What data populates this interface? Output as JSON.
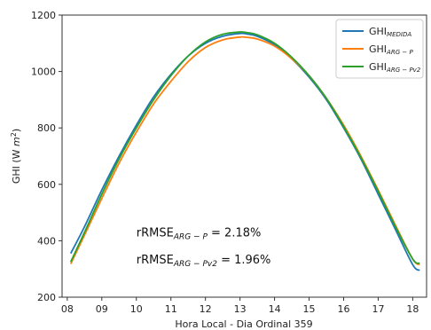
{
  "chart_data": {
    "type": "line",
    "xlabel": "Hora Local - Dia Ordinal 359",
    "ylabel_main": "GHI (W ",
    "ylabel_unit": "m",
    "ylabel_exp": "2",
    "ylabel_close": ")",
    "xlim": [
      7.85,
      18.4
    ],
    "ylim": [
      200,
      1200
    ],
    "x_ticks": [
      8,
      9,
      10,
      11,
      12,
      13,
      14,
      15,
      16,
      17,
      18
    ],
    "x_tick_labels": [
      "08",
      "09",
      "10",
      "11",
      "12",
      "13",
      "14",
      "15",
      "16",
      "17",
      "18"
    ],
    "y_ticks": [
      200,
      400,
      600,
      800,
      1000,
      1200
    ],
    "y_tick_labels": [
      "200",
      "400",
      "600",
      "800",
      "1000",
      "1200"
    ],
    "legend_position": "top-right",
    "series": [
      {
        "name_main": "GHI",
        "name_sub": "MEDIDA",
        "color": "#1f77b4",
        "x": [
          8.1,
          8.5,
          9,
          9.5,
          10,
          10.5,
          11,
          11.5,
          12,
          12.5,
          13,
          13.2,
          13.5,
          14,
          14.5,
          15,
          15.5,
          16,
          16.5,
          17,
          17.5,
          18,
          18.2
        ],
        "y": [
          355,
          450,
          580,
          700,
          810,
          910,
          990,
          1055,
          1100,
          1125,
          1135,
          1133,
          1125,
          1095,
          1045,
          980,
          900,
          800,
          690,
          565,
          440,
          315,
          295
        ]
      },
      {
        "name_main": "GHI",
        "name_sub": "ARG − P",
        "color": "#ff7f0e",
        "x": [
          8.1,
          8.5,
          9,
          9.5,
          10,
          10.5,
          11,
          11.5,
          12,
          12.5,
          13,
          13.2,
          13.5,
          14,
          14.5,
          15,
          15.5,
          16,
          16.5,
          17,
          17.5,
          18,
          18.2
        ],
        "y": [
          318,
          420,
          550,
          675,
          785,
          885,
          965,
          1035,
          1085,
          1112,
          1122,
          1121,
          1115,
          1090,
          1045,
          985,
          905,
          810,
          700,
          580,
          455,
          335,
          315
        ]
      },
      {
        "name_main": "GHI",
        "name_sub": "ARG − Pv2",
        "color": "#2ca02c",
        "x": [
          8.1,
          8.5,
          9,
          9.5,
          10,
          10.5,
          11,
          11.5,
          12,
          12.5,
          13,
          13.2,
          13.5,
          14,
          14.5,
          15,
          15.5,
          16,
          16.5,
          17,
          17.5,
          18,
          18.2
        ],
        "y": [
          325,
          430,
          565,
          690,
          800,
          900,
          985,
          1055,
          1105,
          1132,
          1140,
          1138,
          1130,
          1100,
          1050,
          985,
          905,
          805,
          695,
          575,
          450,
          335,
          320
        ]
      }
    ],
    "annotations": [
      {
        "main": "rRMSE",
        "sub": "ARG − P",
        "rest": " = 2.18%",
        "x": 10,
        "y": 415
      },
      {
        "main": "rRMSE",
        "sub": "ARG − Pv2",
        "rest": " = 1.96%",
        "x": 10,
        "y": 320
      }
    ]
  }
}
